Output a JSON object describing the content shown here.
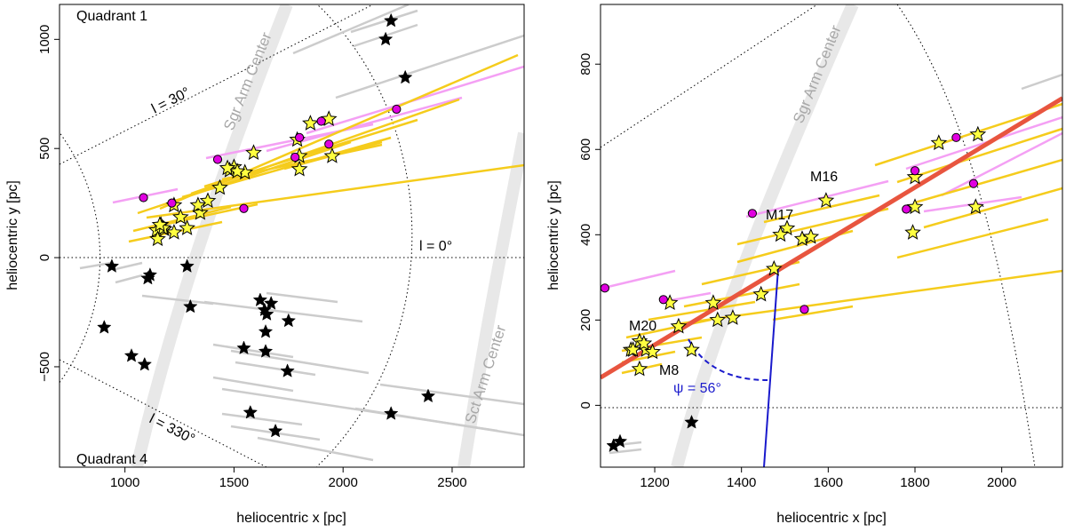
{
  "chart_data": [
    {
      "type": "scatter",
      "panel": "left",
      "xlabel": "heliocentric x [pc]",
      "ylabel": "heliocentric y [pc]",
      "xlim": [
        700,
        2830
      ],
      "ylim": [
        -960,
        1160
      ],
      "xticks": [
        {
          "v": 1000,
          "label": "1000"
        },
        {
          "v": 1500,
          "label": "1500"
        },
        {
          "v": 2000,
          "label": "2000"
        },
        {
          "v": 2500,
          "label": "2500"
        }
      ],
      "yticks": [
        {
          "v": -500,
          "label": "−500"
        },
        {
          "v": 0,
          "label": "0"
        },
        {
          "v": 500,
          "label": "500"
        },
        {
          "v": 1000,
          "label": "1000"
        }
      ],
      "annotations": {
        "quadrant1": "Quadrant 1",
        "quadrant4": "Quadrant 4",
        "l30": "l = 30°",
        "l0": "l = 0°",
        "l330": "l = 330°",
        "sgr_arm": "Sgr Arm Center",
        "sct_arm": "Sct Arm Center"
      },
      "series": [
        {
          "name": "yellow stars",
          "marker": "star",
          "color": "#ffff40",
          "x": [
            1850,
            1935,
            1790,
            1800,
            1800,
            1950,
            1590,
            1500,
            1480,
            1550,
            1515,
            1470,
            1435,
            1380,
            1345,
            1335,
            1225,
            1255,
            1285,
            1165,
            1180,
            1145,
            1175,
            1225,
            1150,
            1160
          ],
          "y": [
            615,
            635,
            540,
            465,
            405,
            465,
            480,
            415,
            400,
            390,
            395,
            410,
            320,
            260,
            205,
            240,
            240,
            185,
            135,
            150,
            130,
            125,
            135,
            115,
            85,
            150
          ]
        },
        {
          "name": "magenta circles",
          "marker": "circle",
          "color": "#e000e0",
          "x": [
            1085,
            1425,
            1215,
            1545,
            1800,
            1900,
            1935,
            1780,
            2245
          ],
          "y": [
            275,
            450,
            250,
            225,
            550,
            625,
            520,
            460,
            680
          ]
        },
        {
          "name": "black stars",
          "marker": "star",
          "color": "#000000",
          "x": [
            2220,
            2195,
            2285,
            940,
            1285,
            1115,
            1105,
            1300,
            905,
            1030,
            1090,
            1620,
            1670,
            1640,
            1645,
            1750,
            1645,
            1545,
            1650,
            1745,
            2390,
            1575,
            2220,
            1690
          ],
          "y": [
            1085,
            1000,
            825,
            -40,
            -40,
            -80,
            -95,
            -225,
            -320,
            -450,
            -490,
            -195,
            -210,
            -240,
            -340,
            -290,
            -430,
            -415,
            -260,
            -520,
            -635,
            -710,
            -715,
            -795
          ]
        }
      ]
    },
    {
      "type": "scatter",
      "panel": "right",
      "xlabel": "heliocentric x [pc]",
      "ylabel": "heliocentric y [pc]",
      "xlim": [
        1075,
        2140
      ],
      "ylim": [
        -145,
        940
      ],
      "xticks": [
        {
          "v": 1200,
          "label": "1200"
        },
        {
          "v": 1400,
          "label": "1400"
        },
        {
          "v": 1600,
          "label": "1600"
        },
        {
          "v": 1800,
          "label": "1800"
        },
        {
          "v": 2000,
          "label": "2000"
        }
      ],
      "yticks": [
        {
          "v": 0,
          "label": "0"
        },
        {
          "v": 200,
          "label": "200"
        },
        {
          "v": 400,
          "label": "400"
        },
        {
          "v": 600,
          "label": "600"
        },
        {
          "v": 800,
          "label": "800"
        }
      ],
      "annotations": {
        "M16": "M16",
        "M17": "M17",
        "M20": "M20",
        "M8": "M8",
        "psi": "ψ = 56°",
        "sgr_arm": "Sgr Arm Center"
      },
      "fit_line": {
        "x": [
          1075,
          2140
        ],
        "y": [
          65,
          720
        ],
        "color": "#e8553f"
      },
      "series": [
        {
          "name": "yellow stars",
          "marker": "star",
          "color": "#ffff40",
          "x": [
            1855,
            1945,
            1800,
            1800,
            1795,
            1940,
            1595,
            1505,
            1490,
            1540,
            1560,
            1475,
            1445,
            1380,
            1345,
            1335,
            1235,
            1255,
            1285,
            1165,
            1180,
            1145,
            1175,
            1195,
            1150,
            1165
          ],
          "y": [
            615,
            635,
            535,
            465,
            405,
            465,
            480,
            415,
            400,
            390,
            395,
            320,
            260,
            205,
            200,
            240,
            240,
            185,
            130,
            150,
            130,
            130,
            145,
            125,
            130,
            85
          ]
        },
        {
          "name": "magenta circles",
          "marker": "circle",
          "color": "#e000e0",
          "x": [
            1085,
            1425,
            1220,
            1545,
            1800,
            1895,
            1935,
            1780
          ],
          "y": [
            275,
            450,
            248,
            225,
            550,
            628,
            520,
            460
          ]
        },
        {
          "name": "black stars",
          "marker": "star",
          "color": "#000000",
          "x": [
            1285,
            1120,
            1105
          ],
          "y": [
            -40,
            -85,
            -95
          ]
        }
      ]
    }
  ]
}
